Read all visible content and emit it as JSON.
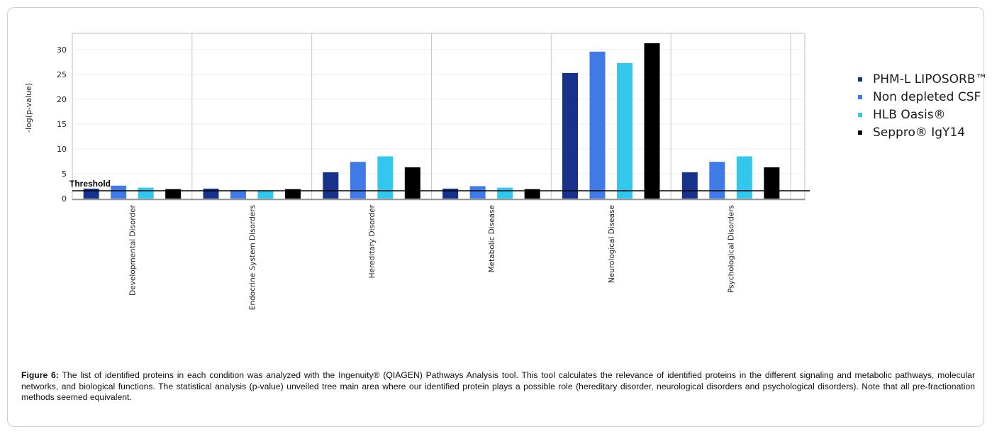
{
  "chart_data": {
    "type": "bar",
    "ylabel": "-log(p-value)",
    "ylim": [
      0,
      33
    ],
    "yticks": [
      0,
      5,
      10,
      15,
      20,
      25,
      30
    ],
    "grid": true,
    "legend_position": "right",
    "categories": [
      "Developmental Disorder",
      "Endocrine System Disorders",
      "Hereditary Disorder",
      "Metabolic Disease",
      "Neurological Disease",
      "Psychological Disorders"
    ],
    "series": [
      {
        "name": "PHM-L LIPOSORB™",
        "color": "#17328a",
        "values": [
          2.0,
          2.0,
          5.3,
          2.0,
          25.3,
          5.3
        ]
      },
      {
        "name": "Non depleted CSF",
        "color": "#3f7ae6",
        "values": [
          2.6,
          1.7,
          7.4,
          2.5,
          29.6,
          7.4
        ]
      },
      {
        "name": "HLB Oasis®",
        "color": "#34c7ee",
        "values": [
          2.2,
          1.6,
          8.5,
          2.2,
          27.3,
          8.5
        ]
      },
      {
        "name": "Seppro® IgY14",
        "color": "#000000",
        "values": [
          1.9,
          1.9,
          6.3,
          1.9,
          31.3,
          6.3
        ]
      }
    ],
    "threshold": {
      "label": "Threshold",
      "value": 1.3
    }
  },
  "caption": {
    "label": "Figure 6:",
    "text": "The list of identified proteins in each condition was analyzed with the Ingenuity® (QIAGEN) Pathways Analysis tool. This tool calculates the relevance of identified proteins in the different signaling and metabolic pathways, molecular networks, and biological functions. The statistical analysis (p-value) unveiled tree main area where our identified protein plays a possible role (hereditary disorder, neurological disorders and psychological disorders). Note that all pre-fractionation methods seemed equivalent."
  }
}
